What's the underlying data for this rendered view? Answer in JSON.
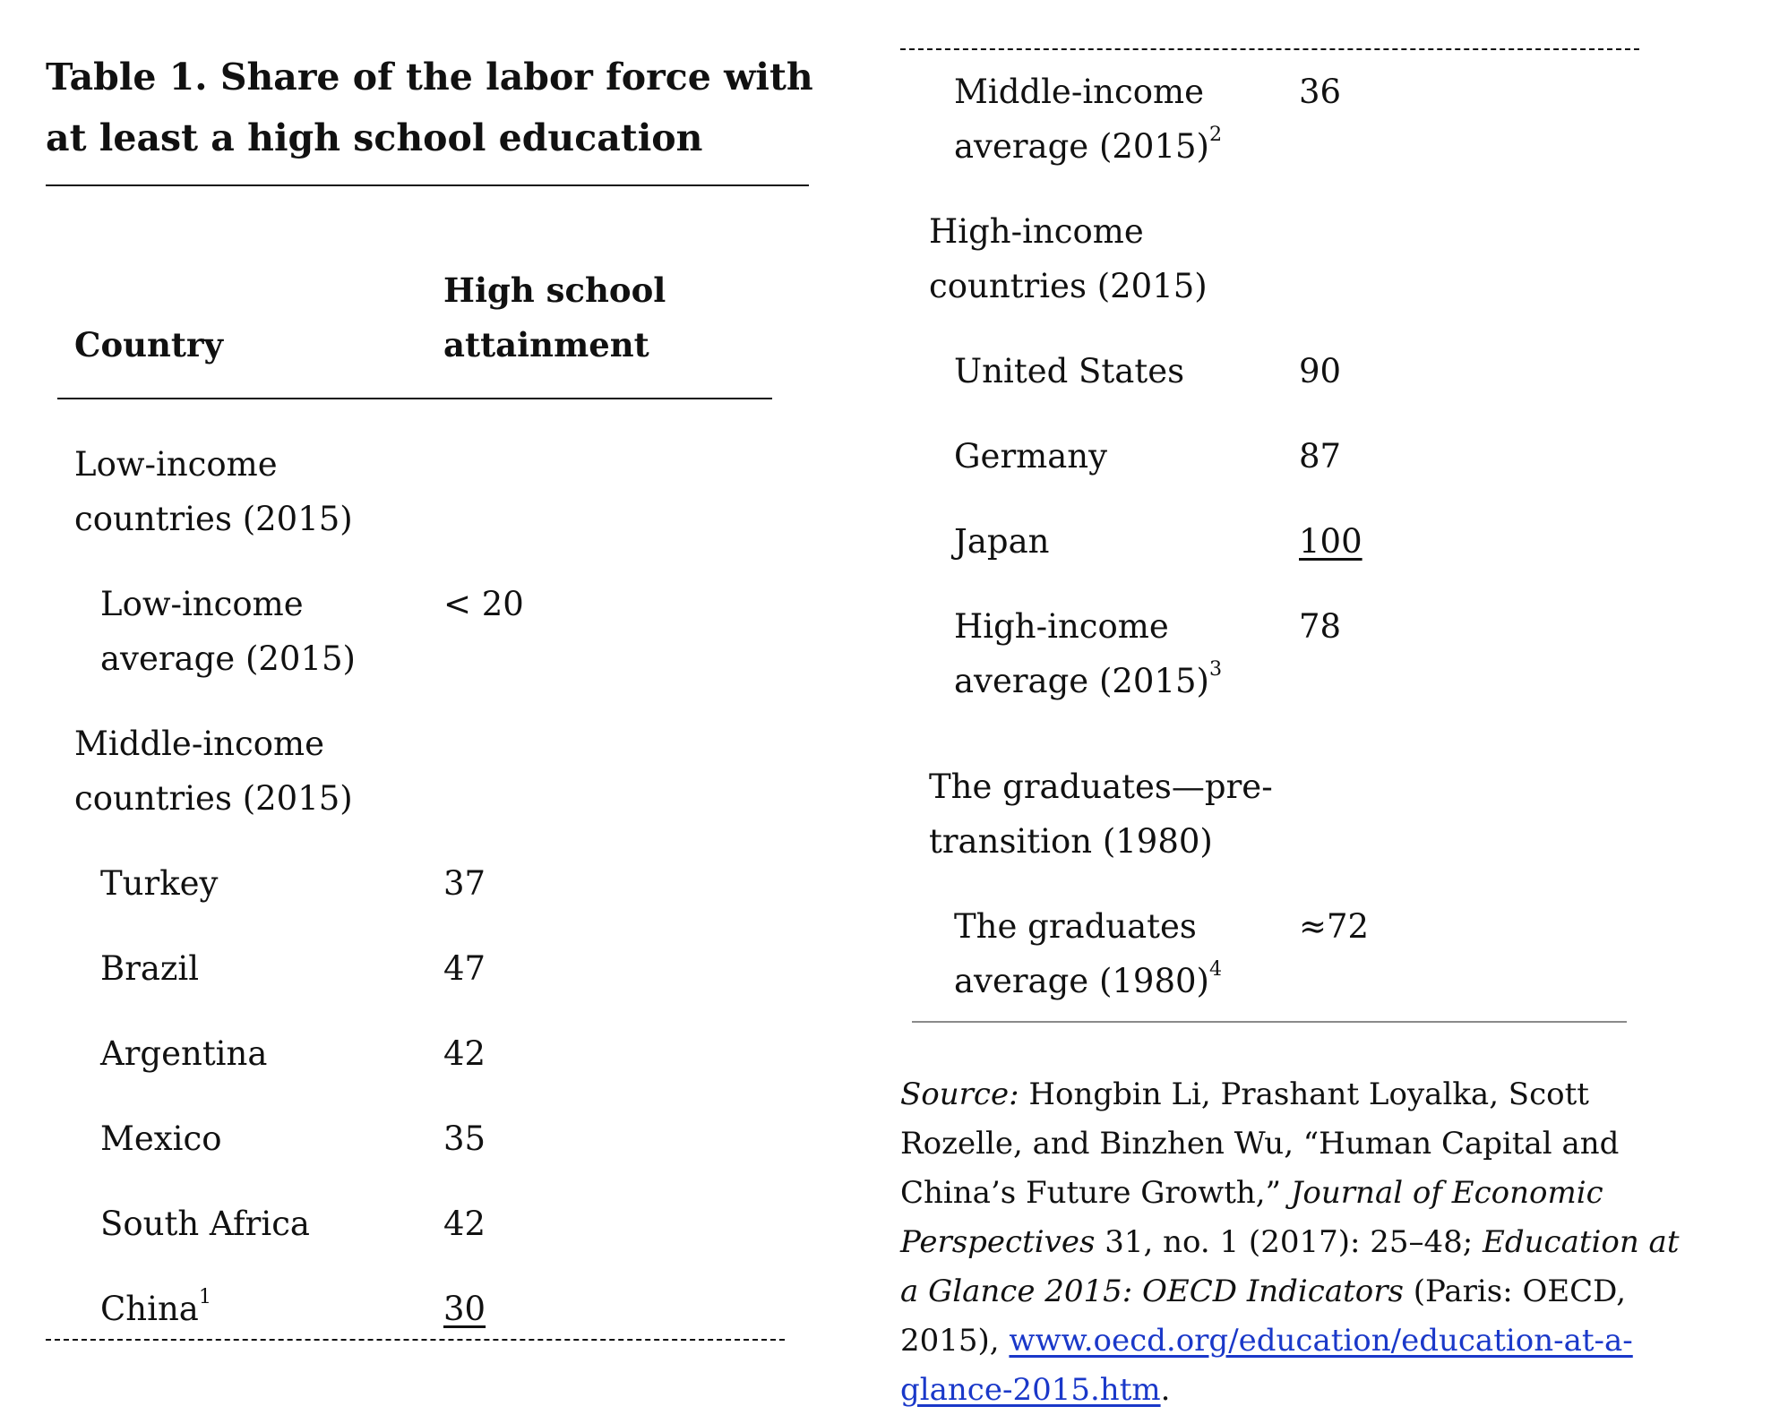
{
  "table": {
    "title": "Table 1. Share of the labor force with at least a high school education",
    "headers": {
      "country": "Country",
      "attainment": "High school attainment"
    },
    "groups": [
      {
        "label": "Low-income countries (2015)",
        "rows": [
          {
            "country": "Low-income average (2015)",
            "value": "< 20"
          }
        ]
      },
      {
        "label": "Middle-income countries (2015)",
        "rows": [
          {
            "country": "Turkey",
            "value": "37"
          },
          {
            "country": "Brazil",
            "value": "47"
          },
          {
            "country": "Argentina",
            "value": "42"
          },
          {
            "country": "Mexico",
            "value": "35"
          },
          {
            "country": "South Africa",
            "value": "42"
          },
          {
            "country": "China",
            "note": "1",
            "value": "30"
          },
          {
            "country": "Middle-income average (2015)",
            "note": "2",
            "value": "36"
          }
        ]
      },
      {
        "label": "High-income countries (2015)",
        "rows": [
          {
            "country": "United States",
            "value": "90"
          },
          {
            "country": "Germany",
            "value": "87"
          },
          {
            "country": "Japan",
            "value": "100"
          },
          {
            "country": "High-income average (2015)",
            "note": "3",
            "value": "78"
          }
        ]
      },
      {
        "label": "The graduates—pre-transition (1980)",
        "rows": [
          {
            "country": "The graduates average (1980)",
            "note": "4",
            "value": "≈72"
          }
        ]
      }
    ]
  },
  "source": {
    "label": "Source:",
    "text1": " Hongbin Li, Prashant Loyalka, Scott Rozelle, and Binzhen Wu, “Human Capital and China’s Future Growth,” ",
    "journal": "Journal of Economic Perspectives",
    "text2": " 31, no. 1 (2017): 25–48; ",
    "book": "Education at a Glance 2015: OECD Indicators",
    "text3": " (Paris: OECD, 2015), ",
    "link": "www.oecd.org/education/education-at-a-glance-2015.htm",
    "text4": "."
  },
  "colors": {
    "text": "#111111",
    "link": "#1a38c9",
    "rule": "#111111",
    "rule_light": "#8a8a8a"
  }
}
